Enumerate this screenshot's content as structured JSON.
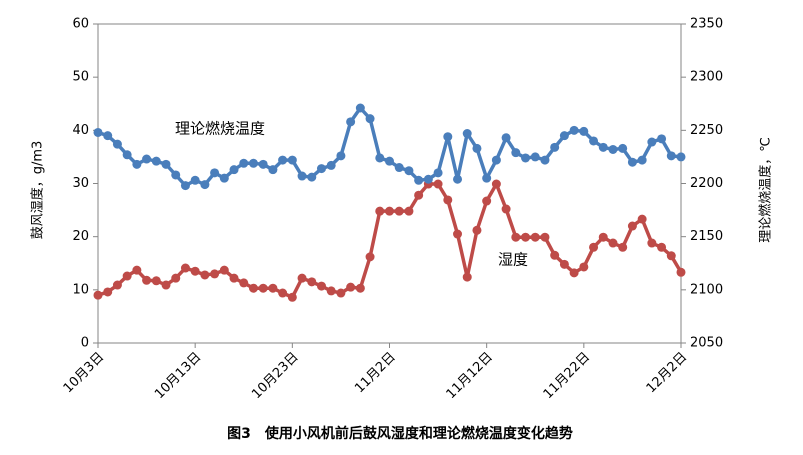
{
  "chart_data": {
    "type": "line",
    "title": "图3　使用小风机前后鼓风湿度和理论燃烧温度变化趋势",
    "ylabel": "鼓风湿度，g/m3",
    "y2label": "理论燃烧温度，℃",
    "annotations": [
      "理论燃烧温度",
      "湿度"
    ],
    "categories": [
      "10月3日",
      null,
      null,
      null,
      null,
      null,
      null,
      null,
      null,
      null,
      "10月13日",
      null,
      null,
      null,
      null,
      null,
      null,
      null,
      null,
      null,
      "10月23日",
      null,
      null,
      null,
      null,
      null,
      null,
      null,
      null,
      null,
      "11月2日",
      null,
      null,
      null,
      null,
      null,
      null,
      null,
      null,
      null,
      "11月12日",
      null,
      null,
      null,
      null,
      null,
      null,
      null,
      null,
      null,
      "11月22日",
      null,
      null,
      null,
      null,
      null,
      null,
      null,
      null,
      null,
      "12月2日"
    ],
    "ylim": [
      0,
      60
    ],
    "yticks": [
      0,
      10,
      20,
      30,
      40,
      50,
      60
    ],
    "y2lim": [
      2050,
      2350
    ],
    "y2ticks": [
      2050,
      2100,
      2150,
      2200,
      2250,
      2300,
      2350
    ],
    "grid": false,
    "series": [
      {
        "name": "湿度",
        "color": "#be4b48",
        "values": [
          9.0,
          9.6,
          10.9,
          12.6,
          13.7,
          11.8,
          11.7,
          10.9,
          12.2,
          14.1,
          13.5,
          12.8,
          13.0,
          13.7,
          12.2,
          11.3,
          10.3,
          10.3,
          10.3,
          9.4,
          8.6,
          12.2,
          11.5,
          10.7,
          9.8,
          9.4,
          10.5,
          10.3,
          16.2,
          24.8,
          24.8,
          24.8,
          24.8,
          27.8,
          29.9,
          29.9,
          26.9,
          20.5,
          12.4,
          21.2,
          26.7,
          29.9,
          25.2,
          19.9,
          19.9,
          19.9,
          19.9,
          16.5,
          14.8,
          13.2,
          14.3,
          18.0,
          19.9,
          18.8,
          18.0,
          22.0,
          23.3,
          18.8,
          18.0,
          16.4,
          13.3
        ]
      },
      {
        "name": "理论燃烧温度",
        "color": "#4a7ebb",
        "axis": "y2",
        "values": [
          2248,
          2245,
          2237,
          2227,
          2218,
          2223,
          2221,
          2218,
          2208,
          2198,
          2203,
          2199,
          2210,
          2205,
          2213,
          2219,
          2219,
          2218,
          2213,
          2222,
          2222,
          2207,
          2206,
          2214,
          2217,
          2226,
          2258,
          2271,
          2261,
          2224,
          2221,
          2215,
          2212,
          2203,
          2204,
          2210,
          2244,
          2204,
          2247,
          2233,
          2205,
          2222,
          2243,
          2229,
          2224,
          2225,
          2222,
          2234,
          2245,
          2250,
          2249,
          2240,
          2234,
          2232,
          2233,
          2220,
          2222,
          2239,
          2242,
          2226,
          2225
        ]
      }
    ]
  }
}
